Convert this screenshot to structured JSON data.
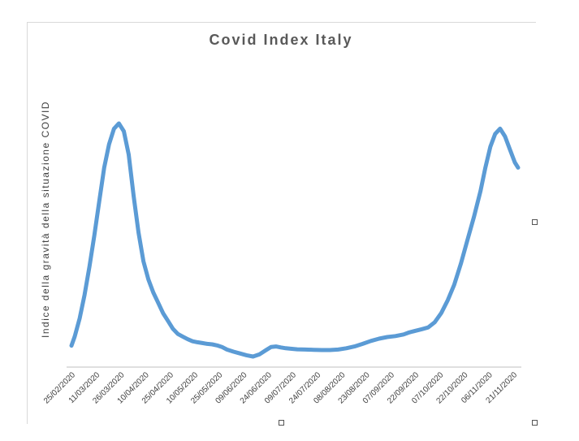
{
  "chart_data": {
    "type": "line",
    "title": "Covid Index Italy",
    "ylabel": "Indice della gravità della situazione COVID",
    "xlabel": "",
    "tick_labels": [
      "25/02/2020",
      "11/03/2020",
      "26/03/2020",
      "10/04/2020",
      "25/04/2020",
      "10/05/2020",
      "25/05/2020",
      "09/06/2020",
      "24/06/2020",
      "09/07/2020",
      "24/07/2020",
      "08/08/2020",
      "23/08/2020",
      "07/09/2020",
      "22/09/2020",
      "07/10/2020",
      "22/10/2020",
      "06/11/2020",
      "21/11/2020"
    ],
    "y_axis_labels_visible": false,
    "ylim": [
      0,
      100
    ],
    "grid": false,
    "legend": "none",
    "line_color": "#5b9bd5",
    "series": [
      {
        "x": [
          "2020-02-25",
          "2020-02-27",
          "2020-03-01",
          "2020-03-04",
          "2020-03-07",
          "2020-03-10",
          "2020-03-13",
          "2020-03-16",
          "2020-03-19",
          "2020-03-22",
          "2020-03-25",
          "2020-03-28",
          "2020-03-31",
          "2020-04-03",
          "2020-04-06",
          "2020-04-09",
          "2020-04-12",
          "2020-04-15",
          "2020-04-18",
          "2020-04-21",
          "2020-04-24",
          "2020-04-27",
          "2020-04-30",
          "2020-05-03",
          "2020-05-06",
          "2020-05-09",
          "2020-05-12",
          "2020-05-15",
          "2020-05-18",
          "2020-05-21",
          "2020-05-24",
          "2020-05-27",
          "2020-05-30",
          "2020-06-03",
          "2020-06-07",
          "2020-06-11",
          "2020-06-15",
          "2020-06-19",
          "2020-06-23",
          "2020-06-26",
          "2020-06-29",
          "2020-07-02",
          "2020-07-05",
          "2020-07-08",
          "2020-07-12",
          "2020-07-17",
          "2020-07-22",
          "2020-07-27",
          "2020-08-01",
          "2020-08-06",
          "2020-08-11",
          "2020-08-16",
          "2020-08-21",
          "2020-08-26",
          "2020-08-31",
          "2020-09-05",
          "2020-09-10",
          "2020-09-15",
          "2020-09-18",
          "2020-09-22",
          "2020-09-26",
          "2020-09-30",
          "2020-10-04",
          "2020-10-08",
          "2020-10-12",
          "2020-10-16",
          "2020-10-20",
          "2020-10-24",
          "2020-10-28",
          "2020-11-01",
          "2020-11-04",
          "2020-11-07",
          "2020-11-10",
          "2020-11-13",
          "2020-11-16",
          "2020-11-19",
          "2020-11-22",
          "2020-11-24"
        ],
        "y": [
          4.5,
          8,
          15,
          24,
          35,
          47,
          60,
          73,
          82,
          88,
          90,
          87,
          78,
          62,
          48,
          37,
          30,
          25,
          21,
          17,
          14,
          11,
          9,
          8,
          7,
          6.2,
          5.8,
          5.5,
          5.2,
          5,
          4.6,
          4,
          3,
          2.2,
          1.5,
          0.8,
          0.3,
          1.2,
          2.8,
          4,
          4.2,
          3.8,
          3.5,
          3.3,
          3.1,
          3,
          2.9,
          2.8,
          2.8,
          3,
          3.5,
          4.2,
          5.2,
          6.3,
          7.2,
          7.8,
          8.2,
          8.8,
          9.5,
          10.2,
          10.8,
          11.5,
          13.5,
          17,
          22,
          28,
          36,
          45,
          54,
          64,
          73,
          81,
          86,
          88,
          85,
          80,
          75,
          73
        ]
      }
    ]
  }
}
